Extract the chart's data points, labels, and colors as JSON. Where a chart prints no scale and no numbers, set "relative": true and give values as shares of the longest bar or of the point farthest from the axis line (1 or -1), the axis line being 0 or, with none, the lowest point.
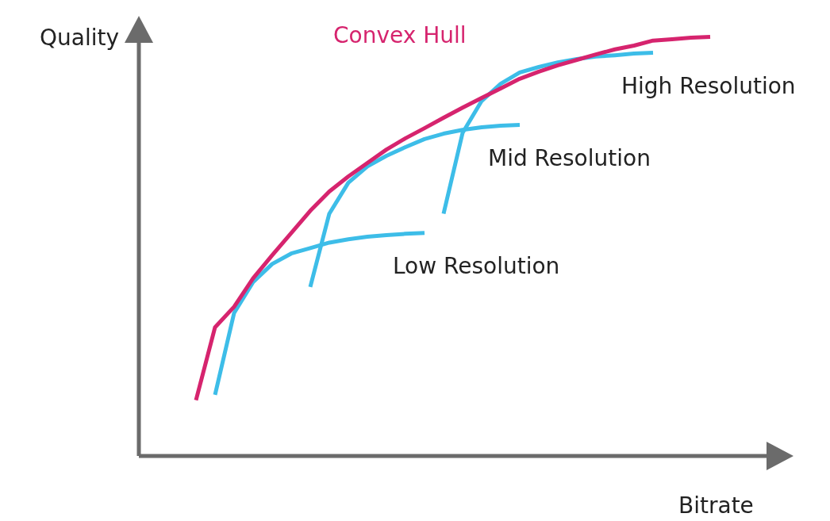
{
  "chart_data": {
    "type": "line",
    "relative": true,
    "xlabel": "Bitrate",
    "ylabel": "Quality",
    "categories": [
      null,
      null,
      null,
      null,
      null,
      null,
      null,
      null,
      null,
      null,
      null,
      null,
      null,
      null,
      null,
      null,
      null,
      null,
      null,
      null,
      null,
      null,
      null,
      null,
      null,
      null,
      null,
      null,
      null,
      null,
      null,
      null,
      null,
      null
    ],
    "series": [
      {
        "name": "Convex Hull",
        "color": "#d6246e",
        "values": [
          null,
          null,
          null,
          0.133,
          0.307,
          0.356,
          0.424,
          0.479,
          0.532,
          0.585,
          0.631,
          0.667,
          0.699,
          0.731,
          0.758,
          0.782,
          0.807,
          0.831,
          0.854,
          0.877,
          0.9,
          0.917,
          0.932,
          0.945,
          0.958,
          0.97,
          0.979,
          0.991,
          0.994,
          0.998,
          1.0,
          null,
          null,
          null
        ]
      },
      {
        "name": "Low Resolution",
        "color": "#3dbde8",
        "values": [
          null,
          null,
          null,
          null,
          0.146,
          0.341,
          0.415,
          0.458,
          0.483,
          0.496,
          0.509,
          0.517,
          0.523,
          0.527,
          0.53,
          0.532,
          null,
          null,
          null,
          null,
          null,
          null,
          null,
          null,
          null,
          null,
          null,
          null,
          null,
          null,
          null,
          null,
          null,
          null
        ]
      },
      {
        "name": "Mid Resolution",
        "color": "#3dbde8",
        "values": [
          null,
          null,
          null,
          null,
          null,
          null,
          null,
          null,
          null,
          0.403,
          0.578,
          0.652,
          0.691,
          0.716,
          0.737,
          0.756,
          0.769,
          0.778,
          0.784,
          0.788,
          0.79,
          null,
          null,
          null,
          null,
          null,
          null,
          null,
          null,
          null,
          null,
          null,
          null,
          null
        ]
      },
      {
        "name": "High Resolution",
        "color": "#3dbde8",
        "values": [
          null,
          null,
          null,
          null,
          null,
          null,
          null,
          null,
          null,
          null,
          null,
          null,
          null,
          null,
          null,
          null,
          0.578,
          0.771,
          0.847,
          0.888,
          0.915,
          0.928,
          0.939,
          0.947,
          0.953,
          0.956,
          0.96,
          0.962,
          null,
          null,
          null,
          null,
          null,
          null
        ]
      }
    ]
  }
}
